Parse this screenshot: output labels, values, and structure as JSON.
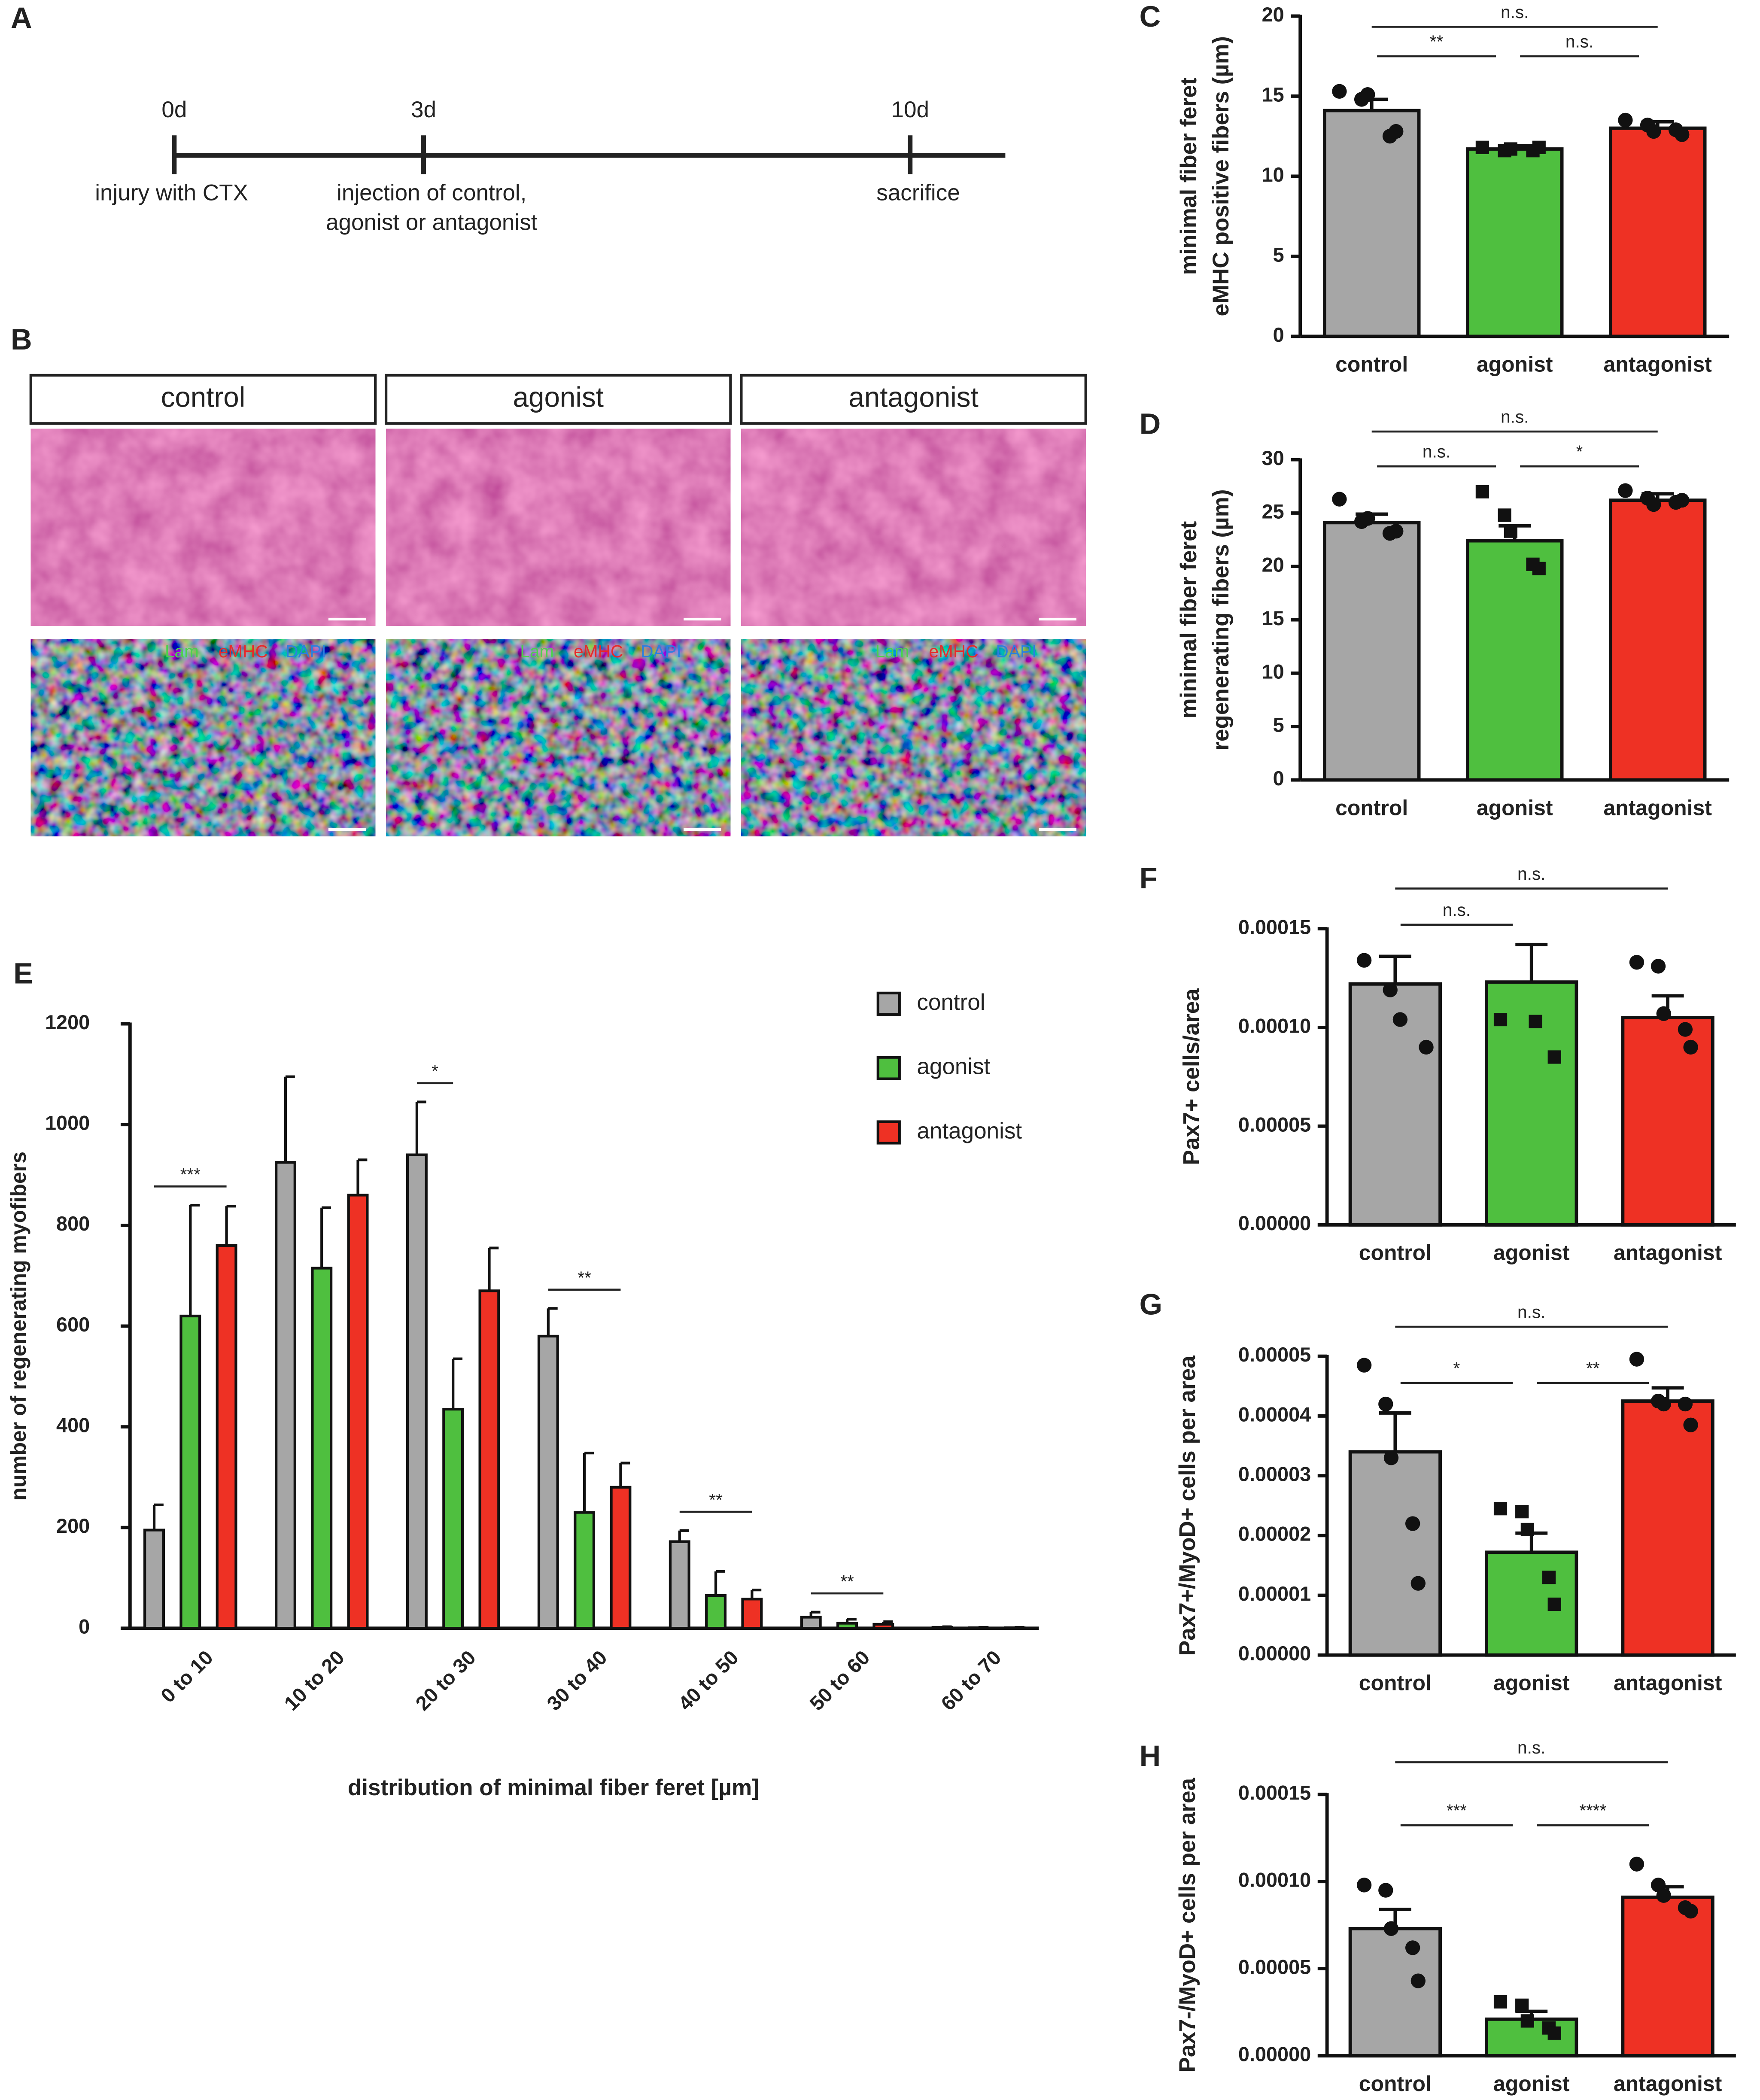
{
  "timeline": {
    "panel": "A",
    "points": [
      {
        "day": "0d",
        "event": [
          "injury with CTX"
        ]
      },
      {
        "day": "3d",
        "event": [
          "injection of control,",
          "agonist or antagonist"
        ]
      },
      {
        "day": "10d",
        "event": [
          "sacrifice"
        ]
      }
    ]
  },
  "histology": {
    "panel": "B",
    "groups": [
      "control",
      "agonist",
      "antagonist"
    ],
    "stains": [
      "Lam",
      "eMHC",
      "DAPI"
    ],
    "stain_colors": [
      "#4cd14c",
      "#e8282a",
      "#2b7fe0"
    ]
  },
  "chart_data": [
    {
      "type": "bar",
      "panel": "C",
      "ylabel": [
        "minimal fiber feret",
        "eMHC positive fibers (µm)"
      ],
      "categories": [
        "control",
        "agonist",
        "antagonist"
      ],
      "colors": [
        "#a6a6a6",
        "#4fbf3f",
        "#ee3124"
      ],
      "markers": [
        "circle",
        "square",
        "circle"
      ],
      "values": [
        14.1,
        11.7,
        13.0
      ],
      "errors": [
        0.7,
        0.2,
        0.4
      ],
      "points": [
        [
          15.3,
          14.8,
          15.1,
          12.5,
          12.8
        ],
        [
          11.8,
          11.6,
          11.7,
          11.6,
          11.8
        ],
        [
          13.5,
          13.2,
          12.8,
          12.9,
          12.6
        ]
      ],
      "ylim": [
        0,
        20
      ],
      "yticks": [
        0,
        5,
        10,
        15,
        20
      ],
      "annotations": [
        {
          "text": "n.s.",
          "between": [
            "control",
            "antagonist"
          ]
        },
        {
          "text": "**",
          "between": [
            "control",
            "agonist"
          ]
        },
        {
          "text": "n.s.",
          "between": [
            "agonist",
            "antagonist"
          ]
        }
      ]
    },
    {
      "type": "bar",
      "panel": "D",
      "ylabel": [
        "minimal fiber feret",
        "regenerating fibers (µm)"
      ],
      "categories": [
        "control",
        "agonist",
        "antagonist"
      ],
      "colors": [
        "#a6a6a6",
        "#4fbf3f",
        "#ee3124"
      ],
      "markers": [
        "circle",
        "square",
        "circle"
      ],
      "values": [
        24.1,
        22.4,
        26.2
      ],
      "errors": [
        0.8,
        1.4,
        0.6
      ],
      "points": [
        [
          26.3,
          24.2,
          24.5,
          23.1,
          23.3
        ],
        [
          27.0,
          24.8,
          23.3,
          20.2,
          19.8
        ],
        [
          27.1,
          26.4,
          25.8,
          26.0,
          26.2
        ]
      ],
      "ylim": [
        0,
        30
      ],
      "yticks": [
        0,
        5,
        10,
        15,
        20,
        25,
        30
      ],
      "annotations": [
        {
          "text": "n.s.",
          "between": [
            "control",
            "antagonist"
          ]
        },
        {
          "text": "n.s.",
          "between": [
            "control",
            "agonist"
          ]
        },
        {
          "text": "*",
          "between": [
            "agonist",
            "antagonist"
          ]
        }
      ]
    },
    {
      "type": "grouped_bar",
      "panel": "E",
      "ylabel": "number of regenerating myofibers",
      "xlabel": "distribution of minimal fiber feret [µm]",
      "categories": [
        "0 to 10",
        "10 to 20",
        "20 to 30",
        "30 to 40",
        "40 to 50",
        "50 to 60",
        "60 to 70"
      ],
      "series": [
        {
          "name": "control",
          "color": "#a6a6a6",
          "values": [
            195,
            925,
            940,
            580,
            172,
            22,
            2
          ],
          "errors": [
            50,
            170,
            105,
            55,
            22,
            10,
            1
          ]
        },
        {
          "name": "agonist",
          "color": "#4fbf3f",
          "values": [
            620,
            715,
            435,
            230,
            65,
            10,
            1
          ],
          "errors": [
            220,
            120,
            100,
            118,
            48,
            8,
            1
          ]
        },
        {
          "name": "antagonist",
          "color": "#ee3124",
          "values": [
            760,
            860,
            670,
            280,
            58,
            8,
            1
          ],
          "errors": [
            78,
            70,
            85,
            48,
            18,
            5,
            1
          ]
        }
      ],
      "ylim": [
        0,
        1200
      ],
      "yticks": [
        0,
        200,
        400,
        600,
        800,
        1000,
        1200
      ],
      "annotations": [
        {
          "text": "***",
          "category": "0 to 10",
          "between": [
            "control",
            "antagonist"
          ]
        },
        {
          "text": "*",
          "category": "20 to 30",
          "between": [
            "control",
            "agonist"
          ]
        },
        {
          "text": "**",
          "category": "30 to 40",
          "between": [
            "control",
            "antagonist"
          ]
        },
        {
          "text": "**",
          "category": "40 to 50",
          "between": [
            "control",
            "antagonist"
          ]
        },
        {
          "text": "**",
          "category": "50 to 60",
          "between": [
            "control",
            "antagonist"
          ]
        }
      ]
    },
    {
      "type": "bar",
      "panel": "F",
      "ylabel": [
        "Pax7+ cells/area"
      ],
      "categories": [
        "control",
        "agonist",
        "antagonist"
      ],
      "colors": [
        "#a6a6a6",
        "#4fbf3f",
        "#ee3124"
      ],
      "markers": [
        "circle",
        "square",
        "circle"
      ],
      "values": [
        0.000122,
        0.000123,
        0.000105
      ],
      "errors": [
        1.4e-05,
        1.9e-05,
        1.1e-05
      ],
      "points": [
        [
          0.000134,
          0.000119,
          0.000104,
          9e-05
        ],
        [
          0.000104,
          0.000103,
          8.5e-05
        ],
        [
          0.000133,
          0.000131,
          0.000107,
          9.9e-05,
          9e-05
        ]
      ],
      "ylim": [
        0,
        0.00015
      ],
      "yticks": [
        {
          "value": 0,
          "label": "0.00000"
        },
        {
          "value": 5e-05,
          "label": "0.00005"
        },
        {
          "value": 0.0001,
          "label": "0.00010"
        },
        {
          "value": 0.00015,
          "label": "0.00015"
        }
      ],
      "annotations": [
        {
          "text": "n.s.",
          "between": [
            "control",
            "antagonist"
          ]
        },
        {
          "text": "n.s.",
          "between": [
            "control",
            "agonist"
          ]
        }
      ]
    },
    {
      "type": "bar",
      "panel": "G",
      "ylabel": [
        "Pax7+/MyoD+ cells per area"
      ],
      "categories": [
        "control",
        "agonist",
        "antagonist"
      ],
      "colors": [
        "#a6a6a6",
        "#4fbf3f",
        "#ee3124"
      ],
      "markers": [
        "circle",
        "square",
        "circle"
      ],
      "values": [
        3.4e-05,
        1.72e-05,
        4.25e-05
      ],
      "errors": [
        6.5e-06,
        3.2e-06,
        2.2e-06
      ],
      "points": [
        [
          4.85e-05,
          4.2e-05,
          3.3e-05,
          2.2e-05,
          1.2e-05
        ],
        [
          2.45e-05,
          2.4e-05,
          2.1e-05,
          1.3e-05,
          8.5e-06
        ],
        [
          4.95e-05,
          4.25e-05,
          4.2e-05,
          4.2e-05,
          3.85e-05
        ]
      ],
      "ylim": [
        0,
        5e-05
      ],
      "yticks": [
        {
          "value": 0,
          "label": "0.00000"
        },
        {
          "value": 1e-05,
          "label": "0.00001"
        },
        {
          "value": 2e-05,
          "label": "0.00002"
        },
        {
          "value": 3e-05,
          "label": "0.00003"
        },
        {
          "value": 4e-05,
          "label": "0.00004"
        },
        {
          "value": 5e-05,
          "label": "0.00005"
        }
      ],
      "annotations": [
        {
          "text": "n.s.",
          "between": [
            "control",
            "antagonist"
          ]
        },
        {
          "text": "*",
          "between": [
            "control",
            "agonist"
          ]
        },
        {
          "text": "**",
          "between": [
            "agonist",
            "antagonist"
          ]
        }
      ]
    },
    {
      "type": "bar",
      "panel": "H",
      "ylabel": [
        "Pax7-/MyoD+ cells per area"
      ],
      "categories": [
        "control",
        "agonist",
        "antagonist"
      ],
      "colors": [
        "#a6a6a6",
        "#4fbf3f",
        "#ee3124"
      ],
      "markers": [
        "circle",
        "square",
        "circle"
      ],
      "values": [
        7.3e-05,
        2.1e-05,
        9.1e-05
      ],
      "errors": [
        1.1e-05,
        4.5e-06,
        6e-06
      ],
      "points": [
        [
          9.8e-05,
          9.5e-05,
          7.3e-05,
          6.2e-05,
          4.3e-05
        ],
        [
          3.1e-05,
          2.9e-05,
          2e-05,
          1.6e-05,
          1.3e-05
        ],
        [
          0.00011,
          9.8e-05,
          9.2e-05,
          8.5e-05,
          8.3e-05
        ]
      ],
      "ylim": [
        0,
        0.00015
      ],
      "yticks": [
        {
          "value": 0,
          "label": "0.00000"
        },
        {
          "value": 5e-05,
          "label": "0.00005"
        },
        {
          "value": 0.0001,
          "label": "0.00010"
        },
        {
          "value": 0.00015,
          "label": "0.00015"
        }
      ],
      "annotations": [
        {
          "text": "n.s.",
          "between": [
            "control",
            "antagonist"
          ]
        },
        {
          "text": "***",
          "between": [
            "control",
            "agonist"
          ]
        },
        {
          "text": "****",
          "between": [
            "agonist",
            "antagonist"
          ]
        }
      ]
    }
  ]
}
